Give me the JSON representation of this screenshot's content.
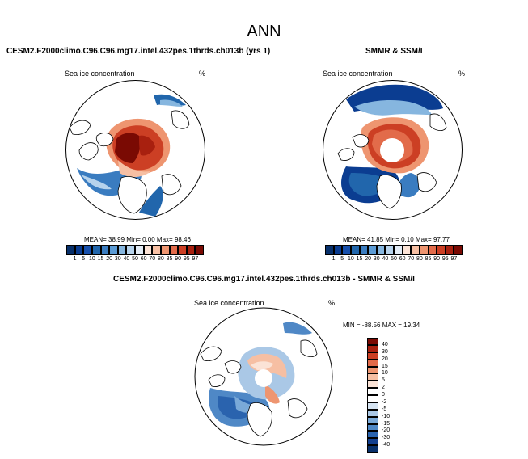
{
  "figure": {
    "title": "ANN"
  },
  "panels": {
    "model": {
      "case_title": "CESM2.F2000climo.C96.C96.mg17.intel.432pes.1thrds.ch013b (yrs 1)",
      "variable_label": "Sea ice concentration",
      "units_label": "%",
      "stats": {
        "mean_label": "MEAN=",
        "mean": "38.99",
        "min_label": "Min=",
        "min": "0.00",
        "max_label": "Max=",
        "max": "98.46"
      }
    },
    "obs": {
      "case_title": "SMMR & SSM/I",
      "variable_label": "Sea ice concentration",
      "units_label": "%",
      "stats": {
        "mean_label": "MEAN=",
        "mean": "41.85",
        "min_label": "Min=",
        "min": "0.10",
        "max_label": "Max=",
        "max": "97.77"
      }
    },
    "diff": {
      "case_title": "CESM2.F2000climo.C96.C96.mg17.intel.432pes.1thrds.ch013b - SMMR & SSM/I",
      "variable_label": "Sea ice concentration",
      "units_label": "%",
      "stats_line": "MIN = -88.56 MAX = 19.34"
    }
  },
  "colorbars": {
    "abs_levels": [
      "1",
      "5",
      "10",
      "15",
      "20",
      "30",
      "40",
      "50",
      "60",
      "70",
      "80",
      "85",
      "90",
      "95",
      "97"
    ],
    "abs_colors": [
      "#08306b",
      "#0b3d91",
      "#1750ac",
      "#2166ac",
      "#3a7cc0",
      "#5b9bd5",
      "#86b6df",
      "#b7d3ec",
      "#e3ecf6",
      "#fbe3d6",
      "#f6bfa3",
      "#ee9570",
      "#e26b4a",
      "#cc3f24",
      "#a8200f",
      "#7a0a03"
    ],
    "diff_levels": [
      "40",
      "30",
      "20",
      "15",
      "10",
      "5",
      "2",
      "0",
      "-2",
      "-5",
      "-10",
      "-15",
      "-20",
      "-30",
      "-40"
    ],
    "diff_colors": [
      "#7a0a03",
      "#a8200f",
      "#cc3f24",
      "#e26b4a",
      "#ee9570",
      "#f6bfa3",
      "#fbe3d6",
      "#ffffff",
      "#ffffff",
      "#d6e4f2",
      "#aac8e6",
      "#7aa9d8",
      "#4f88c6",
      "#2a63ae",
      "#123f8f",
      "#08306b"
    ]
  },
  "colors": {
    "ice_red_dark": "#7a0a03",
    "ice_red": "#cc3f24",
    "ice_orange": "#ee9570",
    "ice_pink": "#f6bfa3",
    "ice_blue_light": "#b7d3ec",
    "ice_blue": "#2166ac",
    "ice_blue_dark": "#08306b"
  }
}
